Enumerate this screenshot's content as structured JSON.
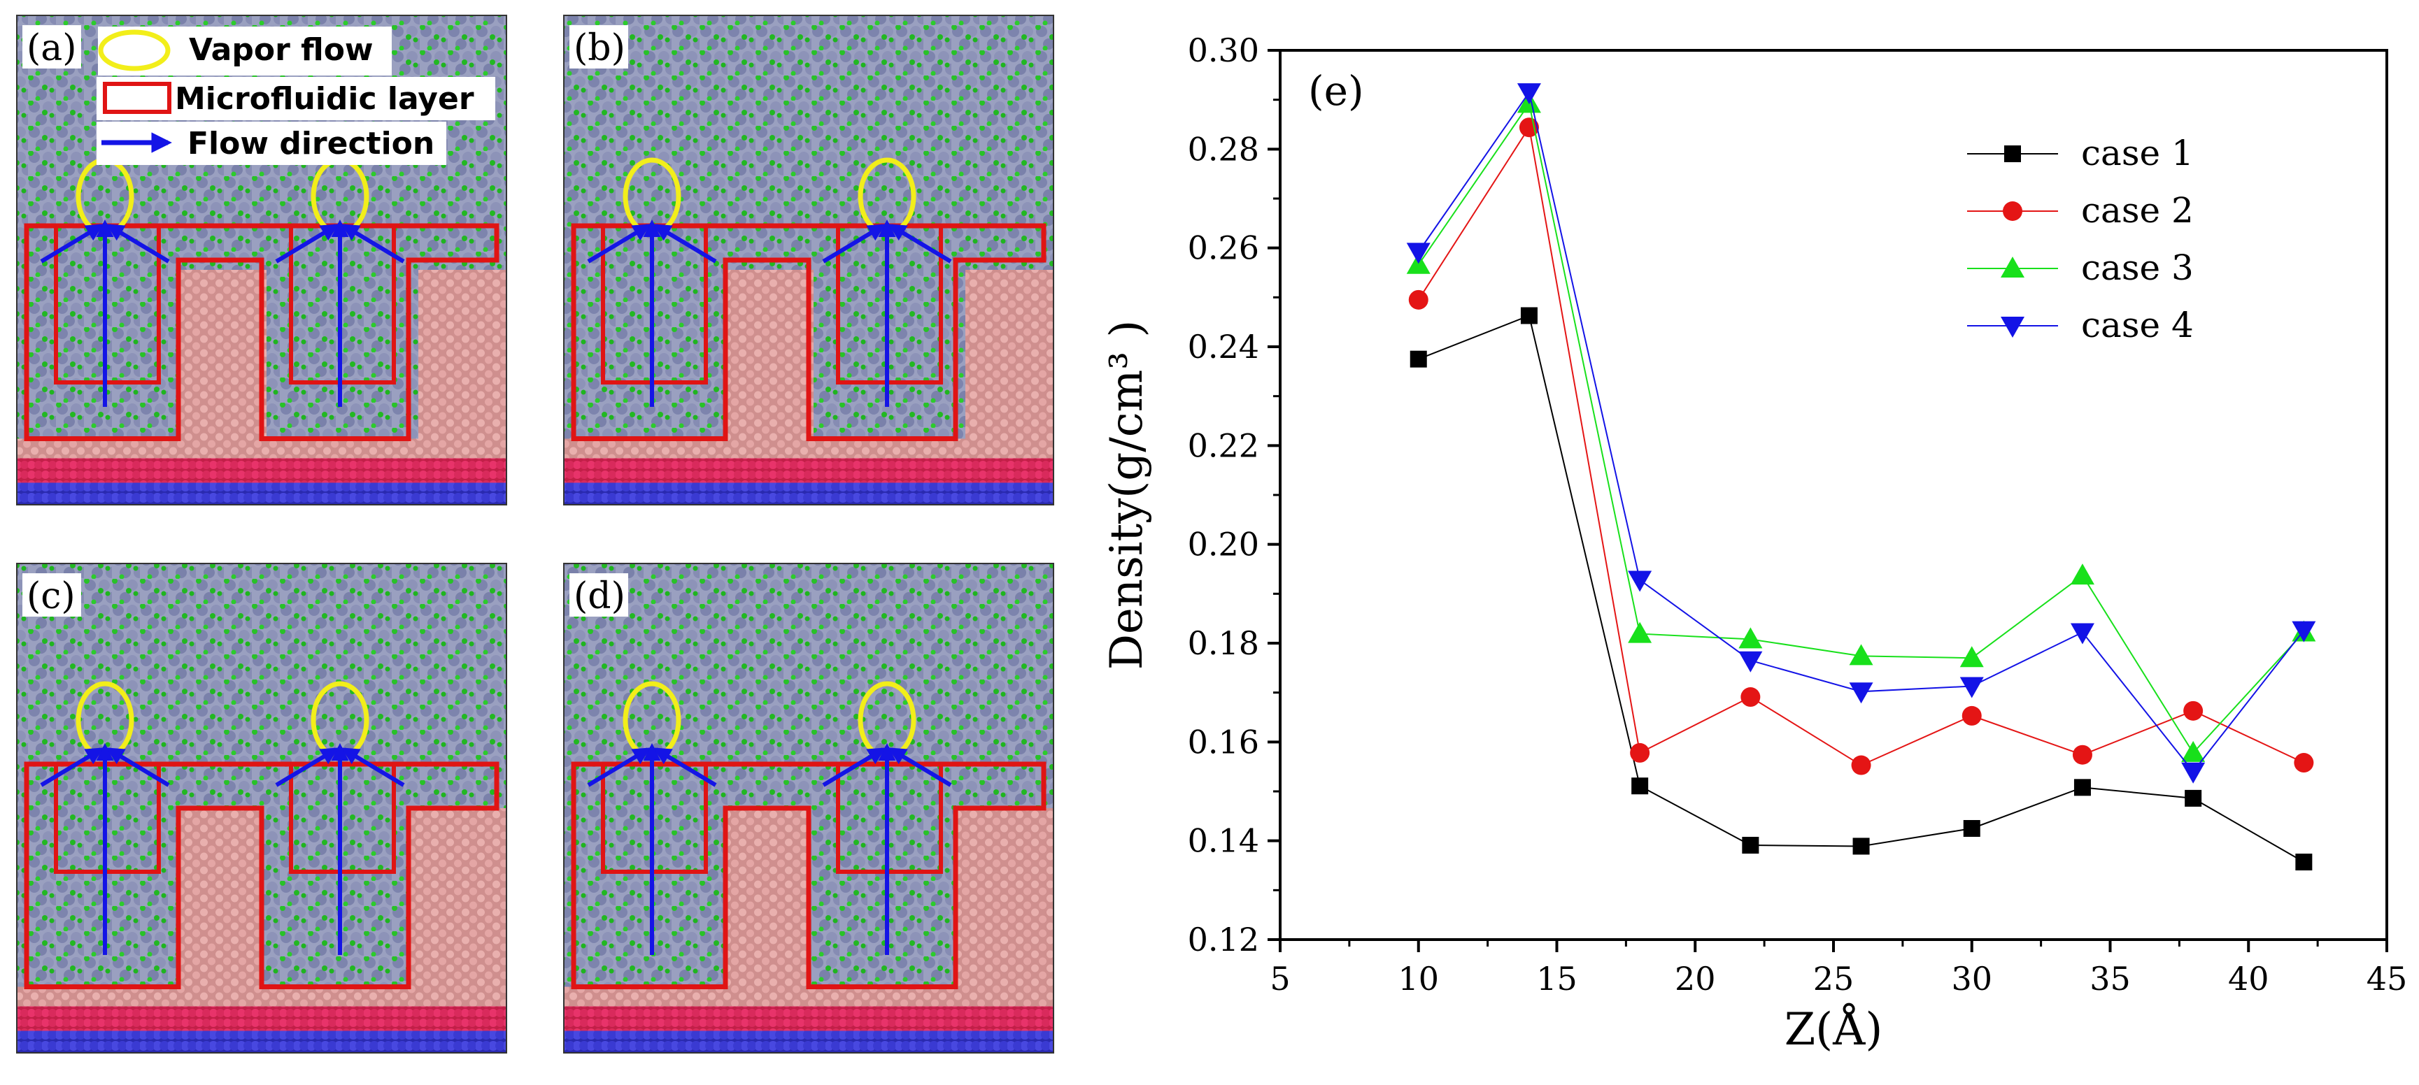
{
  "panels": [
    {
      "label": "(a)"
    },
    {
      "label": "(b)"
    },
    {
      "label": "(c)"
    },
    {
      "label": "(d)"
    }
  ],
  "legend_mol": {
    "vapor": "Vapor flow",
    "micro": "Microfluidic layer",
    "flow": "Flow direction"
  },
  "colors": {
    "water_o": "#8a90b5",
    "water_h": "#23c423",
    "solid": "#e3a6a5",
    "substrate_red": "#de2a54",
    "substrate_blue": "#3f3fd6",
    "outline": "#e01414",
    "vapor_ellipse": "#f2ee1a",
    "arrow": "#1414e6"
  },
  "chart_data": {
    "type": "line",
    "panel_label": "(e)",
    "xlabel": "Z(Å)",
    "ylabel": "Density(g/cm³ )",
    "xlim": [
      5,
      45
    ],
    "ylim": [
      0.12,
      0.3
    ],
    "xticks": [
      5,
      10,
      15,
      20,
      25,
      30,
      35,
      40,
      45
    ],
    "yticks": [
      "0.12",
      "0.14",
      "0.16",
      "0.18",
      "0.20",
      "0.22",
      "0.24",
      "0.26",
      "0.28",
      "0.30"
    ],
    "x": [
      10,
      14,
      18,
      22,
      26,
      30,
      34,
      38,
      42
    ],
    "legend_position": "top-right",
    "series": [
      {
        "name": "case 1",
        "color": "#000000",
        "marker": "square",
        "values": [
          0.2375,
          0.2463,
          0.1511,
          0.1391,
          0.1389,
          0.1425,
          0.1508,
          0.1486,
          0.1357
        ]
      },
      {
        "name": "case 2",
        "color": "#e41515",
        "marker": "circle",
        "values": [
          0.2495,
          0.2844,
          0.1578,
          0.1691,
          0.1553,
          0.1653,
          0.1574,
          0.1663,
          0.1558
        ]
      },
      {
        "name": "case 3",
        "color": "#18e01b",
        "marker": "triangle-up",
        "values": [
          0.2566,
          0.2892,
          0.1819,
          0.1808,
          0.1774,
          0.177,
          0.1937,
          0.1578,
          0.1822
        ]
      },
      {
        "name": "case 4",
        "color": "#1313e6",
        "marker": "triangle-down",
        "values": [
          0.2592,
          0.2915,
          0.1928,
          0.1765,
          0.1702,
          0.1713,
          0.1822,
          0.154,
          0.1826
        ]
      }
    ]
  }
}
